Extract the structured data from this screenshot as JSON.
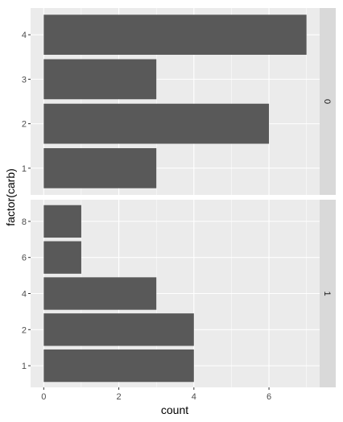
{
  "chart_data": {
    "type": "bar",
    "orientation": "horizontal",
    "xlabel": "count",
    "ylabel": "factor(carb)",
    "xlim": [
      -0.35,
      7.35
    ],
    "x_ticks": [
      0,
      2,
      4,
      6
    ],
    "grid": true,
    "facets": [
      {
        "strip_label": "0",
        "categories": [
          "1",
          "2",
          "3",
          "4"
        ],
        "values": [
          3,
          6,
          3,
          7
        ]
      },
      {
        "strip_label": "1",
        "categories": [
          "1",
          "2",
          "4",
          "6",
          "8"
        ],
        "values": [
          4,
          4,
          3,
          1,
          1
        ]
      }
    ],
    "colors": {
      "bar": "#595959",
      "panel": "#ebebeb",
      "grid_major": "#ffffff",
      "strip": "#d9d9d9",
      "tick": "#333333"
    }
  }
}
